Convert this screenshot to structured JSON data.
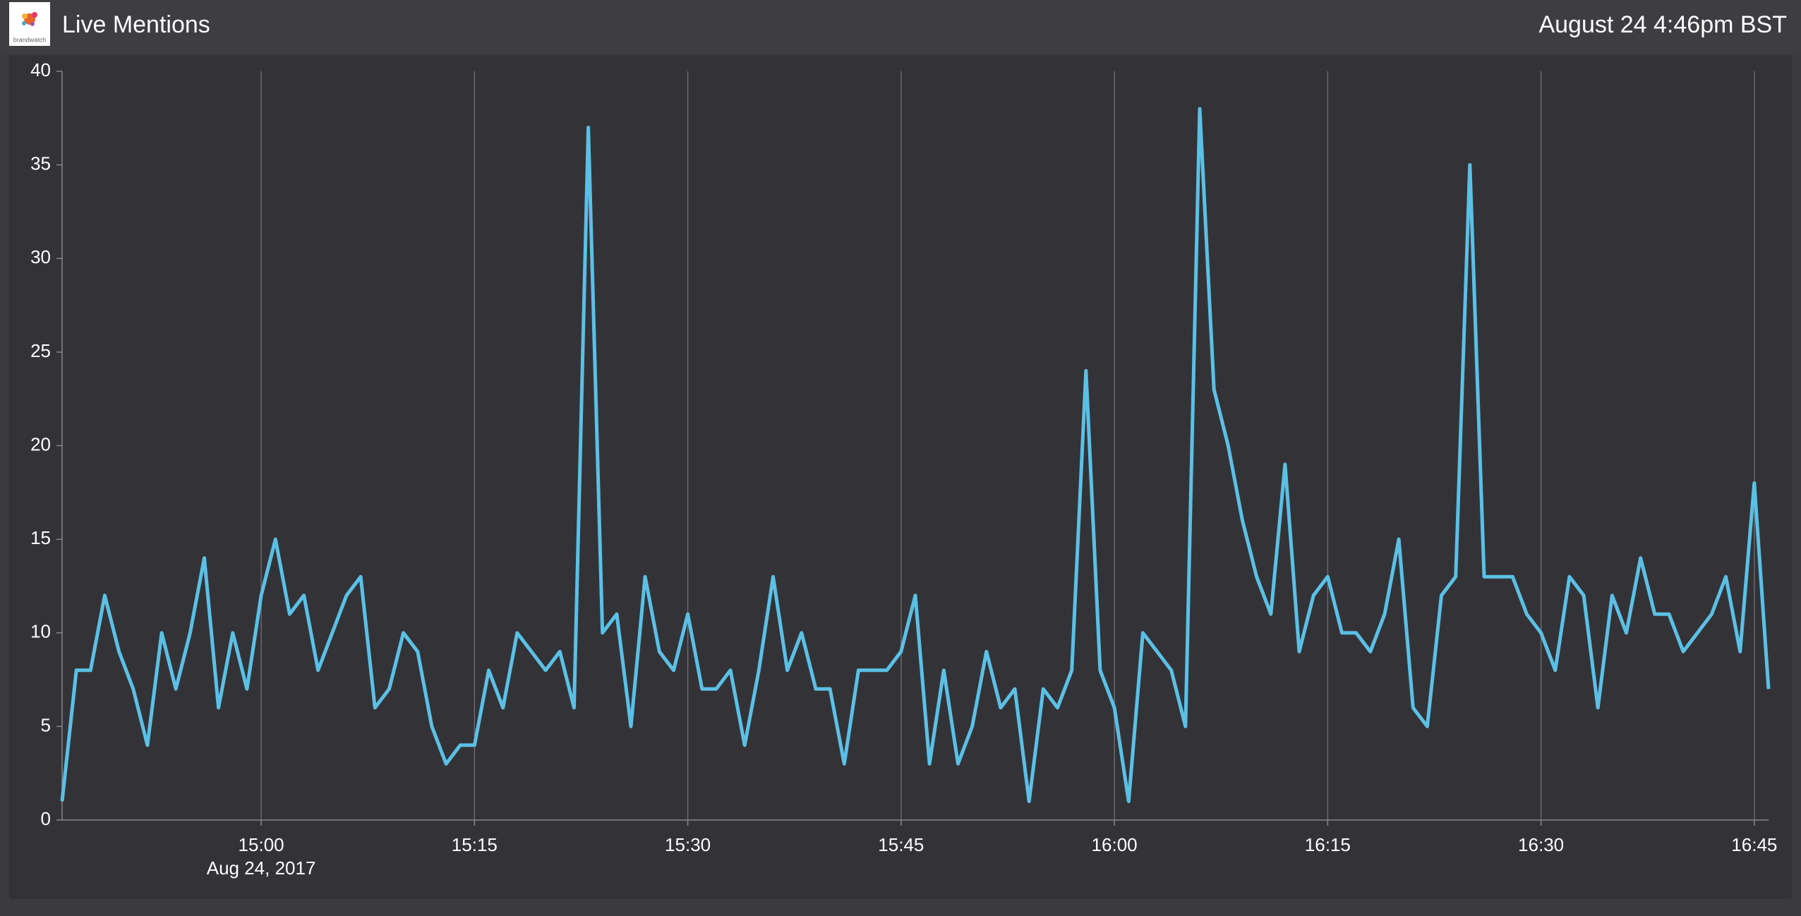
{
  "header": {
    "title": "Live Mentions",
    "timestamp": "August 24 4:46pm BST",
    "logo_text": "brandwatch"
  },
  "chart_data": {
    "type": "line",
    "x": [
      "14:46",
      "14:47",
      "14:48",
      "14:49",
      "14:50",
      "14:51",
      "14:52",
      "14:53",
      "14:54",
      "14:55",
      "14:56",
      "14:57",
      "14:58",
      "14:59",
      "15:00",
      "15:01",
      "15:02",
      "15:03",
      "15:04",
      "15:05",
      "15:06",
      "15:07",
      "15:08",
      "15:09",
      "15:10",
      "15:11",
      "15:12",
      "15:13",
      "15:14",
      "15:15",
      "15:16",
      "15:17",
      "15:18",
      "15:19",
      "15:20",
      "15:21",
      "15:22",
      "15:23",
      "15:24",
      "15:25",
      "15:26",
      "15:27",
      "15:28",
      "15:29",
      "15:30",
      "15:31",
      "15:32",
      "15:33",
      "15:34",
      "15:35",
      "15:36",
      "15:37",
      "15:38",
      "15:39",
      "15:40",
      "15:41",
      "15:42",
      "15:43",
      "15:44",
      "15:45",
      "15:46",
      "15:47",
      "15:48",
      "15:49",
      "15:50",
      "15:51",
      "15:52",
      "15:53",
      "15:54",
      "15:55",
      "15:56",
      "15:57",
      "15:58",
      "15:59",
      "16:00",
      "16:01",
      "16:02",
      "16:03",
      "16:04",
      "16:05",
      "16:06",
      "16:07",
      "16:08",
      "16:09",
      "16:10",
      "16:11",
      "16:12",
      "16:13",
      "16:14",
      "16:15",
      "16:16",
      "16:17",
      "16:18",
      "16:19",
      "16:20",
      "16:21",
      "16:22",
      "16:23",
      "16:24",
      "16:25",
      "16:26",
      "16:27",
      "16:28",
      "16:29",
      "16:30",
      "16:31",
      "16:32",
      "16:33",
      "16:34",
      "16:35",
      "16:36",
      "16:37",
      "16:38",
      "16:39",
      "16:40",
      "16:41",
      "16:42",
      "16:43",
      "16:44",
      "16:45",
      "16:46"
    ],
    "values": [
      1,
      8,
      8,
      12,
      9,
      7,
      4,
      10,
      7,
      10,
      14,
      6,
      10,
      7,
      12,
      15,
      11,
      12,
      8,
      10,
      12,
      13,
      6,
      7,
      10,
      9,
      5,
      3,
      4,
      4,
      8,
      6,
      10,
      9,
      8,
      9,
      6,
      37,
      10,
      11,
      5,
      13,
      9,
      8,
      11,
      7,
      7,
      8,
      4,
      8,
      13,
      8,
      10,
      7,
      7,
      3,
      8,
      8,
      8,
      9,
      12,
      3,
      8,
      3,
      5,
      9,
      6,
      7,
      1,
      7,
      6,
      8,
      24,
      8,
      6,
      1,
      10,
      9,
      8,
      5,
      38,
      23,
      20,
      16,
      13,
      11,
      19,
      9,
      12,
      13,
      10,
      10,
      9,
      11,
      15,
      6,
      5,
      12,
      13,
      35,
      13,
      13,
      13,
      11,
      10,
      8,
      13,
      12,
      6,
      12,
      10,
      14,
      11,
      11,
      9,
      10,
      11,
      13,
      9,
      18,
      7
    ],
    "color": "#5bc0e6",
    "xlim": [
      "14:46",
      "16:46"
    ],
    "xticks": [
      "15:00",
      "15:15",
      "15:30",
      "15:45",
      "16:00",
      "16:15",
      "16:30",
      "16:45"
    ],
    "x_date_label": "Aug 24, 2017",
    "ylim": [
      0,
      40
    ],
    "yticks": [
      0,
      5,
      10,
      15,
      20,
      25,
      30,
      35,
      40
    ],
    "grid": true
  }
}
